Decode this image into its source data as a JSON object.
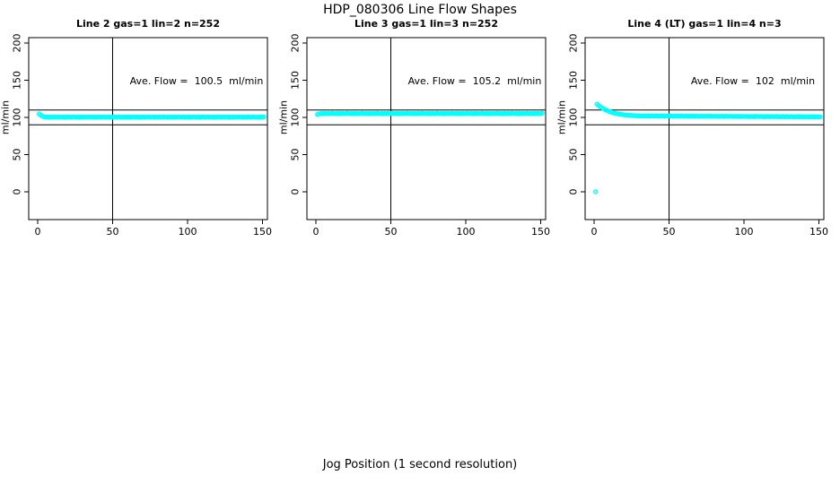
{
  "figure": {
    "title": "HDP_080306  Line Flow Shapes",
    "xlabel": "Jog Position (1 second resolution)",
    "background_color": "#ffffff",
    "data_color": "#00ffff",
    "axis_color": "#000000"
  },
  "chart_data": [
    {
      "type": "scatter",
      "title": "Line 2 gas=1 lin=2 n=252",
      "annotation": "Ave. Flow =  100.5  ml/min",
      "ave_flow_ml_min": 100.5,
      "n": 252,
      "ylabel": "ml/min",
      "x_ticks": [
        0,
        50,
        100,
        150
      ],
      "y_ticks": [
        0,
        50,
        100,
        150,
        200
      ],
      "xlim": [
        0,
        150
      ],
      "ylim": [
        0,
        200
      ],
      "h_ref_lines": [
        90,
        110
      ],
      "v_ref_lines": [
        50
      ],
      "grid": false,
      "series": {
        "name": "line2-flow",
        "x_start": 1,
        "x_step": 1,
        "y": [
          104.8,
          103.0,
          101.8,
          101.1,
          100.7,
          100.3,
          100.7,
          100.0,
          100.6,
          100.2,
          100.8,
          100.1,
          100.5,
          100.9,
          100.4,
          100.3,
          100.7,
          100.0,
          100.6,
          100.2,
          100.8,
          100.1,
          100.5,
          100.9,
          100.4,
          100.3,
          100.7,
          100.0,
          100.6,
          100.2,
          100.8,
          100.1,
          100.5,
          100.9,
          100.4,
          100.3,
          100.7,
          100.0,
          100.6,
          100.2,
          100.8,
          100.1,
          100.5,
          100.9,
          100.4,
          100.3,
          100.7,
          100.0,
          100.6,
          100.2,
          100.8,
          100.1,
          100.5,
          100.9,
          100.4,
          100.3,
          100.7,
          100.0,
          100.6,
          100.2,
          100.8,
          100.1,
          100.5,
          100.9,
          100.4,
          100.3,
          100.7,
          100.0,
          100.6,
          100.2,
          100.8,
          100.1,
          100.5,
          100.9,
          100.4,
          100.3,
          100.7,
          100.0,
          100.6,
          100.2,
          100.8,
          100.1,
          100.5,
          100.9,
          100.4,
          100.3,
          100.7,
          100.0,
          100.6,
          100.2,
          100.8,
          100.1,
          100.5,
          100.9,
          100.4,
          100.3,
          100.7,
          100.0,
          100.6,
          100.2,
          100.8,
          100.1,
          100.5,
          100.9,
          100.4,
          100.3,
          100.7,
          100.0,
          100.6,
          100.2,
          100.8,
          100.1,
          100.5,
          100.9,
          100.4,
          100.3,
          100.7,
          100.0,
          100.6,
          100.2,
          100.8,
          100.1,
          100.5,
          100.9,
          100.4,
          100.3,
          100.7,
          100.0,
          100.6,
          100.2,
          100.8,
          100.1,
          100.5,
          100.9,
          100.4,
          100.3,
          100.7,
          100.0,
          100.6,
          100.2,
          100.8,
          100.1,
          100.5,
          100.9,
          100.4,
          100.3,
          100.7,
          100.0,
          100.6,
          100.2,
          100.8
        ]
      }
    },
    {
      "type": "scatter",
      "title": "Line 3 gas=1 lin=3 n=252",
      "annotation": "Ave. Flow =  105.2  ml/min",
      "ave_flow_ml_min": 105.2,
      "n": 252,
      "ylabel": "ml/min",
      "x_ticks": [
        0,
        50,
        100,
        150
      ],
      "y_ticks": [
        0,
        50,
        100,
        150,
        200
      ],
      "xlim": [
        0,
        150
      ],
      "ylim": [
        0,
        200
      ],
      "h_ref_lines": [
        90,
        110
      ],
      "v_ref_lines": [
        50
      ],
      "grid": false,
      "series": {
        "name": "line3-flow",
        "x_start": 1,
        "x_step": 1,
        "y": [
          103.8,
          104.6,
          105.1,
          105.5,
          104.8,
          105.4,
          105.0,
          105.6,
          104.9,
          105.3,
          105.7,
          105.2,
          105.1,
          105.5,
          104.8,
          105.4,
          105.0,
          105.6,
          104.9,
          105.3,
          105.7,
          105.2,
          105.1,
          105.5,
          104.8,
          105.4,
          105.0,
          105.6,
          104.9,
          105.3,
          105.7,
          105.2,
          105.1,
          105.5,
          104.8,
          105.4,
          105.0,
          105.6,
          104.9,
          105.3,
          105.7,
          105.2,
          105.1,
          105.5,
          104.8,
          105.4,
          105.0,
          105.6,
          104.9,
          105.3,
          105.7,
          105.2,
          105.1,
          105.5,
          104.8,
          105.4,
          105.0,
          105.6,
          104.9,
          105.3,
          105.7,
          105.2,
          105.1,
          105.5,
          104.8,
          105.4,
          105.0,
          105.6,
          104.9,
          105.3,
          105.7,
          105.2,
          105.1,
          105.5,
          104.8,
          105.4,
          105.0,
          105.6,
          104.9,
          105.3,
          105.7,
          105.2,
          105.1,
          105.5,
          104.8,
          105.4,
          105.0,
          105.6,
          104.9,
          105.3,
          105.7,
          105.2,
          105.1,
          105.5,
          104.8,
          105.4,
          105.0,
          105.6,
          104.9,
          105.3,
          105.7,
          105.2,
          105.1,
          105.5,
          104.8,
          105.4,
          105.0,
          105.6,
          104.9,
          105.3,
          105.7,
          105.2,
          105.1,
          105.5,
          104.8,
          105.4,
          105.0,
          105.6,
          104.9,
          105.3,
          105.7,
          105.2,
          105.1,
          105.5,
          104.8,
          105.4,
          105.0,
          105.6,
          104.9,
          105.3,
          105.7,
          105.2,
          105.1,
          105.5,
          104.8,
          105.4,
          105.0,
          105.6,
          104.9,
          105.3,
          105.7,
          105.2,
          105.1,
          105.5,
          104.8,
          105.4,
          105.0,
          105.6,
          104.9,
          105.3,
          105.7
        ]
      }
    },
    {
      "type": "scatter",
      "title": "Line 4 (LT) gas=1 lin=4 n=3",
      "annotation": "Ave. Flow =  102  ml/min",
      "ave_flow_ml_min": 102,
      "n": 3,
      "ylabel": "ml/min",
      "x_ticks": [
        0,
        50,
        100,
        150
      ],
      "y_ticks": [
        0,
        50,
        100,
        150,
        200
      ],
      "xlim": [
        0,
        150
      ],
      "ylim": [
        0,
        200
      ],
      "h_ref_lines": [
        90,
        110
      ],
      "v_ref_lines": [
        50
      ],
      "grid": false,
      "series": {
        "name": "line4-flow",
        "x_start": 1,
        "x_step": 1,
        "y": [
          0,
          117.8,
          116.1,
          114.5,
          113.1,
          111.9,
          110.8,
          109.8,
          108.9,
          108.1,
          107.4,
          106.7,
          106.2,
          105.7,
          105.2,
          104.8,
          104.4,
          104.1,
          103.8,
          103.5,
          103.3,
          103.1,
          102.9,
          102.7,
          102.6,
          102.5,
          102.3,
          102.2,
          102.1,
          102.0,
          101.9,
          102.1,
          101.7,
          102.0,
          101.8,
          102.2,
          101.6,
          102.1,
          101.9,
          101.8,
          101.8,
          102.0,
          101.6,
          101.9,
          101.7,
          102.1,
          101.5,
          102.0,
          101.8,
          101.7,
          101.7,
          101.9,
          101.5,
          101.8,
          101.6,
          102.0,
          101.4,
          101.9,
          101.7,
          101.6,
          101.6,
          101.8,
          101.4,
          101.7,
          101.5,
          101.9,
          101.3,
          101.8,
          101.6,
          101.5,
          101.5,
          101.7,
          101.3,
          101.6,
          101.4,
          101.8,
          101.2,
          101.7,
          101.5,
          101.4,
          101.5,
          101.6,
          101.2,
          101.5,
          101.3,
          101.7,
          101.1,
          101.6,
          101.4,
          101.3,
          101.4,
          101.5,
          101.1,
          101.4,
          101.2,
          101.6,
          101.0,
          101.5,
          101.3,
          101.2,
          101.3,
          101.4,
          101.0,
          101.3,
          101.1,
          101.5,
          100.9,
          101.4,
          101.2,
          101.1,
          101.2,
          101.3,
          100.9,
          101.2,
          101.0,
          101.4,
          100.8,
          101.3,
          101.1,
          101.0,
          101.1,
          101.2,
          100.8,
          101.1,
          100.9,
          101.3,
          100.7,
          101.2,
          101.0,
          100.9,
          101.1,
          101.1,
          100.7,
          101.0,
          100.8,
          101.2,
          100.6,
          101.1,
          100.9,
          100.8,
          101.0,
          101.0,
          100.6,
          100.9,
          100.7,
          101.1,
          100.5,
          101.0,
          100.8,
          100.7,
          100.9
        ]
      }
    }
  ]
}
